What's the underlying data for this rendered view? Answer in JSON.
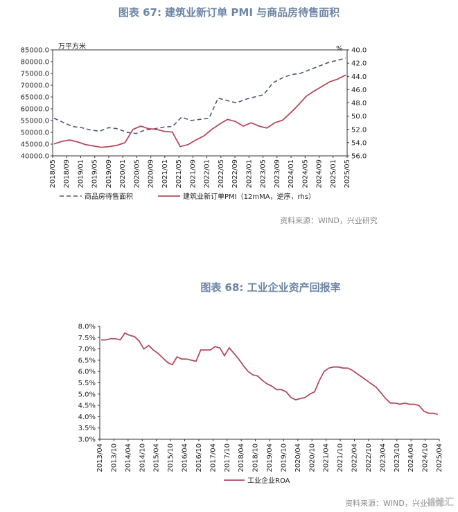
{
  "source_note": "资料来源：WIND，兴业研究",
  "watermark": "格隆汇",
  "chart_data": [
    {
      "type": "line",
      "title": "图表 67: 建筑业新订单 PMI 与商品房待售面积",
      "left_unit": "万平方米",
      "right_unit": "%",
      "left_ylim": [
        40000,
        85000
      ],
      "right_ylim": [
        40.0,
        56.0
      ],
      "right_inverted": true,
      "left_ticks": [
        "85000.0",
        "80000.0",
        "75000.0",
        "70000.0",
        "65000.0",
        "60000.0",
        "55000.0",
        "50000.0",
        "45000.0",
        "40000.0"
      ],
      "right_ticks": [
        "40.0",
        "42.0",
        "44.0",
        "46.0",
        "48.0",
        "50.0",
        "52.0",
        "54.0",
        "56.0"
      ],
      "x_ticks": [
        "2018/05",
        "2018/09",
        "2019/01",
        "2019/05",
        "2019/09",
        "2020/01",
        "2020/05",
        "2020/09",
        "2021/01",
        "2021/05",
        "2021/09",
        "2022/01",
        "2022/05",
        "2022/09",
        "2023/01",
        "2023/05",
        "2023/09",
        "2024/01",
        "2024/05",
        "2024/09",
        "2025/01",
        "2025/05"
      ],
      "legend_position": "bottom",
      "series": [
        {
          "name": "商品房待售面积",
          "axis": "left",
          "style": "dashed",
          "color": "#4a5a75",
          "values": [
            56000,
            54200,
            52500,
            52000,
            51000,
            50500,
            52000,
            51500,
            50000,
            49500,
            51000,
            51500,
            52200,
            52500,
            56500,
            55000,
            55500,
            56000,
            64500,
            63500,
            62500,
            64000,
            65000,
            66000,
            71000,
            73000,
            74500,
            75000,
            76500,
            78000,
            79500,
            80500,
            81500
          ]
        },
        {
          "name": "建筑业新订单PMI（12mMA，逆序，rhs）",
          "axis": "right",
          "style": "solid",
          "color": "#b24a5c",
          "values": [
            54.2,
            53.8,
            53.6,
            53.9,
            54.3,
            54.5,
            54.7,
            54.6,
            54.4,
            54.0,
            52.0,
            51.5,
            51.9,
            52.0,
            52.3,
            52.4,
            54.6,
            54.3,
            53.6,
            53.0,
            52.0,
            51.2,
            50.5,
            50.8,
            51.5,
            51.0,
            51.5,
            51.8,
            51.0,
            50.6,
            49.5,
            48.3,
            47.0,
            46.2,
            45.5,
            44.8,
            44.4,
            43.8
          ]
        }
      ]
    },
    {
      "type": "line",
      "title": "图表 68: 工业企业资产回报率",
      "ylim": [
        3.0,
        8.0
      ],
      "y_ticks": [
        "8.0%",
        "7.5%",
        "7.0%",
        "6.5%",
        "6.0%",
        "5.5%",
        "5.0%",
        "4.5%",
        "4.0%",
        "3.5%",
        "3.0%"
      ],
      "x_ticks": [
        "2013/04",
        "2013/10",
        "2014/04",
        "2014/10",
        "2015/04",
        "2015/10",
        "2016/04",
        "2016/10",
        "2017/04",
        "2017/10",
        "2018/04",
        "2018/10",
        "2019/04",
        "2019/10",
        "2020/04",
        "2020/10",
        "2021/04",
        "2021/10",
        "2022/04",
        "2022/10",
        "2023/04",
        "2023/10",
        "2024/04",
        "2024/10",
        "2025/04"
      ],
      "legend_position": "bottom",
      "series": [
        {
          "name": "工业企业ROA",
          "color": "#b24a5c",
          "values": [
            7.4,
            7.4,
            7.45,
            7.45,
            7.4,
            7.7,
            7.6,
            7.55,
            7.35,
            7.0,
            7.15,
            6.95,
            6.8,
            6.6,
            6.4,
            6.3,
            6.65,
            6.55,
            6.55,
            6.5,
            6.45,
            6.95,
            6.95,
            6.95,
            7.1,
            7.05,
            6.7,
            7.05,
            6.8,
            6.55,
            6.25,
            6.0,
            5.85,
            5.8,
            5.6,
            5.45,
            5.35,
            5.2,
            5.2,
            5.1,
            4.85,
            4.75,
            4.8,
            4.85,
            5.0,
            5.1,
            5.6,
            6.0,
            6.15,
            6.2,
            6.2,
            6.15,
            6.15,
            6.05,
            5.9,
            5.75,
            5.6,
            5.45,
            5.3,
            5.05,
            4.8,
            4.6,
            4.6,
            4.55,
            4.6,
            4.55,
            4.55,
            4.5,
            4.25,
            4.15,
            4.15,
            4.1
          ]
        }
      ]
    }
  ]
}
